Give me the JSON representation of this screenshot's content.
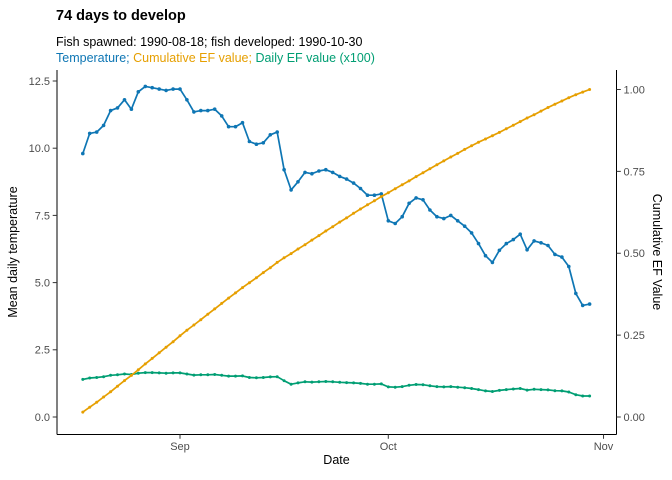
{
  "title": "74 days to develop",
  "subtitle": "Fish spawned: 1990-08-18; fish developed: 1990-10-30",
  "legend": {
    "temperature": {
      "label": "Temperature;",
      "color": "#0E76B4"
    },
    "cumulative": {
      "label": "Cumulative EF value;",
      "color": "#E69F00"
    },
    "daily": {
      "label": "Daily EF value (x100)",
      "color": "#009E73"
    }
  },
  "chart_data": {
    "type": "line",
    "title": "74 days to develop",
    "subtitle": "Fish spawned: 1990-08-18; fish developed: 1990-10-30",
    "x_start_date": "1990-08-18",
    "x_end_date": "1990-10-30",
    "n_days": 74,
    "xlabel": "Date",
    "ylabel_left": "Mean daily temperature",
    "ylabel_right": "Cumulative EF Value",
    "grid": false,
    "legend_position": "top-as-colored-subtitle",
    "ylim_left": [
      0,
      12.5
    ],
    "ylim_right": [
      0,
      1.0
    ],
    "x_ticks": [
      {
        "label": "Sep",
        "day": 14
      },
      {
        "label": "Oct",
        "day": 44
      },
      {
        "label": "Nov",
        "day": 75
      }
    ],
    "y_ticks_left": [
      0,
      2.5,
      5,
      7.5,
      10,
      12.5
    ],
    "y_ticks_left_labels": [
      "0.0",
      "2.5",
      "5.0",
      "7.5",
      "10.0",
      "12.5"
    ],
    "y_ticks_right": [
      0,
      0.25,
      0.5,
      0.75,
      1.0
    ],
    "y_ticks_right_labels": [
      "0.00",
      "0.25",
      "0.50",
      "0.75",
      "1.00"
    ],
    "axis_text_color": "#4D4D4D",
    "axis_line_color": "#000000",
    "series": [
      {
        "name": "Temperature",
        "axis": "left",
        "color": "#0E76B4",
        "values": [
          9.8,
          10.55,
          10.6,
          10.85,
          11.4,
          11.5,
          11.8,
          11.45,
          12.1,
          12.3,
          12.25,
          12.2,
          12.15,
          12.2,
          12.2,
          11.8,
          11.35,
          11.4,
          11.4,
          11.45,
          11.2,
          10.8,
          10.8,
          10.95,
          10.25,
          10.15,
          10.2,
          10.5,
          10.6,
          9.2,
          8.45,
          8.75,
          9.1,
          9.05,
          9.15,
          9.2,
          9.1,
          8.95,
          8.85,
          8.7,
          8.5,
          8.25,
          8.25,
          8.3,
          7.3,
          7.2,
          7.45,
          7.95,
          8.15,
          8.08,
          7.7,
          7.45,
          7.38,
          7.5,
          7.3,
          7.1,
          6.85,
          6.45,
          6.0,
          5.75,
          6.2,
          6.45,
          6.6,
          6.8,
          6.22,
          6.55,
          6.48,
          6.38,
          6.05,
          5.95,
          5.6,
          4.6,
          4.15,
          4.2
        ]
      },
      {
        "name": "Cumulative EF value",
        "axis": "right",
        "color": "#E69F00",
        "values": [
          0.015,
          0.03,
          0.045,
          0.061,
          0.077,
          0.094,
          0.111,
          0.127,
          0.144,
          0.162,
          0.179,
          0.196,
          0.213,
          0.23,
          0.248,
          0.265,
          0.281,
          0.297,
          0.314,
          0.33,
          0.347,
          0.363,
          0.379,
          0.395,
          0.41,
          0.425,
          0.441,
          0.456,
          0.472,
          0.486,
          0.499,
          0.513,
          0.526,
          0.54,
          0.554,
          0.568,
          0.581,
          0.595,
          0.608,
          0.622,
          0.635,
          0.648,
          0.66,
          0.673,
          0.685,
          0.697,
          0.709,
          0.721,
          0.734,
          0.746,
          0.758,
          0.77,
          0.782,
          0.794,
          0.805,
          0.817,
          0.828,
          0.839,
          0.849,
          0.859,
          0.869,
          0.88,
          0.891,
          0.902,
          0.913,
          0.923,
          0.934,
          0.945,
          0.955,
          0.965,
          0.975,
          0.984,
          0.992,
          1.0
        ]
      },
      {
        "name": "Daily EF value (x100)",
        "axis": "left",
        "color": "#009E73",
        "values": [
          1.4,
          1.45,
          1.47,
          1.5,
          1.55,
          1.57,
          1.6,
          1.58,
          1.63,
          1.65,
          1.65,
          1.64,
          1.63,
          1.64,
          1.64,
          1.6,
          1.56,
          1.57,
          1.57,
          1.58,
          1.55,
          1.52,
          1.52,
          1.53,
          1.47,
          1.46,
          1.47,
          1.49,
          1.5,
          1.35,
          1.22,
          1.27,
          1.31,
          1.3,
          1.31,
          1.32,
          1.31,
          1.29,
          1.28,
          1.27,
          1.25,
          1.22,
          1.22,
          1.23,
          1.12,
          1.11,
          1.13,
          1.18,
          1.21,
          1.2,
          1.16,
          1.13,
          1.12,
          1.13,
          1.11,
          1.09,
          1.06,
          1.02,
          0.97,
          0.95,
          0.99,
          1.02,
          1.04,
          1.06,
          1.0,
          1.03,
          1.02,
          1.01,
          0.98,
          0.97,
          0.93,
          0.83,
          0.78,
          0.78
        ]
      }
    ]
  }
}
